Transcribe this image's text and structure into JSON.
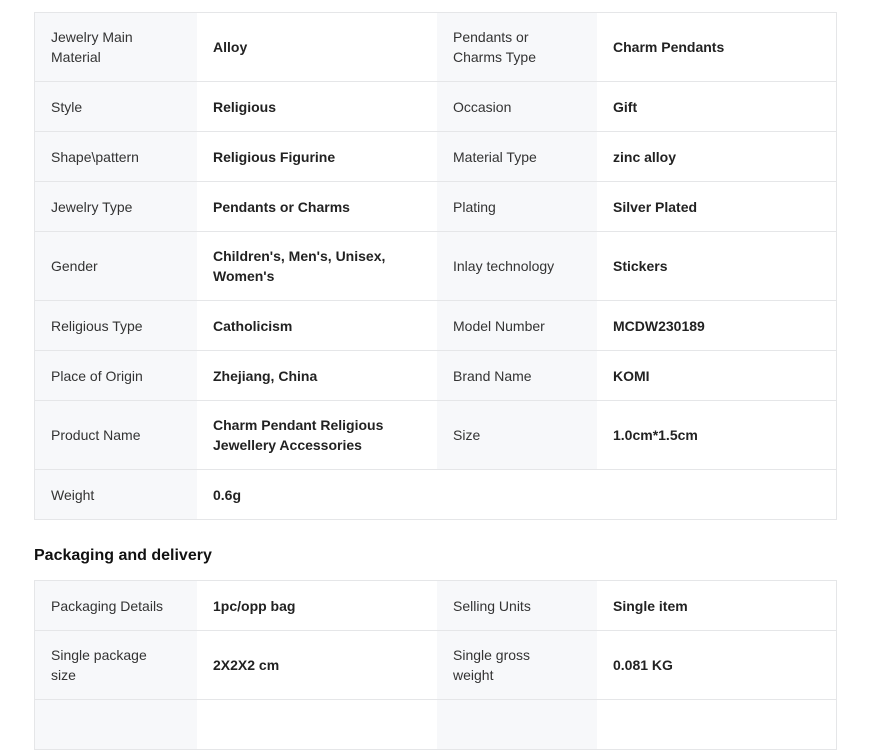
{
  "colors": {
    "label_cell_background": "#f7f8fa",
    "table_border": "#e5e6e8",
    "label_text": "#333333",
    "value_text": "#222222",
    "heading_text": "#111111",
    "page_background": "#ffffff"
  },
  "spec_table": {
    "rows": [
      {
        "pairs": [
          {
            "label": "Jewelry Main Material",
            "value": "Alloy"
          },
          {
            "label": "Pendants or Charms Type",
            "value": "Charm Pendants"
          }
        ]
      },
      {
        "pairs": [
          {
            "label": "Style",
            "value": "Religious"
          },
          {
            "label": "Occasion",
            "value": "Gift"
          }
        ]
      },
      {
        "pairs": [
          {
            "label": "Shape\\pattern",
            "value": "Religious Figurine"
          },
          {
            "label": "Material Type",
            "value": "zinc alloy"
          }
        ]
      },
      {
        "pairs": [
          {
            "label": "Jewelry Type",
            "value": "Pendants or Charms"
          },
          {
            "label": "Plating",
            "value": "Silver Plated"
          }
        ]
      },
      {
        "pairs": [
          {
            "label": "Gender",
            "value": "Children's, Men's, Unisex, Women's"
          },
          {
            "label": "Inlay technology",
            "value": "Stickers"
          }
        ]
      },
      {
        "pairs": [
          {
            "label": "Religious Type",
            "value": "Catholicism"
          },
          {
            "label": "Model Number",
            "value": "MCDW230189"
          }
        ]
      },
      {
        "pairs": [
          {
            "label": "Place of Origin",
            "value": "Zhejiang, China"
          },
          {
            "label": "Brand Name",
            "value": "KOMI"
          }
        ]
      },
      {
        "pairs": [
          {
            "label": "Product Name",
            "value": "Charm Pendant Religious Jewellery Accessories"
          },
          {
            "label": "Size",
            "value": "1.0cm*1.5cm"
          }
        ]
      },
      {
        "pairs": [
          {
            "label": "Weight",
            "value": "0.6g"
          },
          null
        ]
      }
    ]
  },
  "packaging_section": {
    "heading": "Packaging and delivery",
    "rows": [
      {
        "pairs": [
          {
            "label": "Packaging Details",
            "value": "1pc/opp bag"
          },
          {
            "label": "Selling Units",
            "value": "Single item"
          }
        ]
      },
      {
        "pairs": [
          {
            "label": "Single package size",
            "value": "2X2X2 cm"
          },
          {
            "label": "Single gross weight",
            "value": "0.081 KG"
          }
        ]
      },
      {
        "pairs": [
          {
            "label": "",
            "value": ""
          },
          {
            "label": "",
            "value": ""
          }
        ]
      }
    ]
  }
}
